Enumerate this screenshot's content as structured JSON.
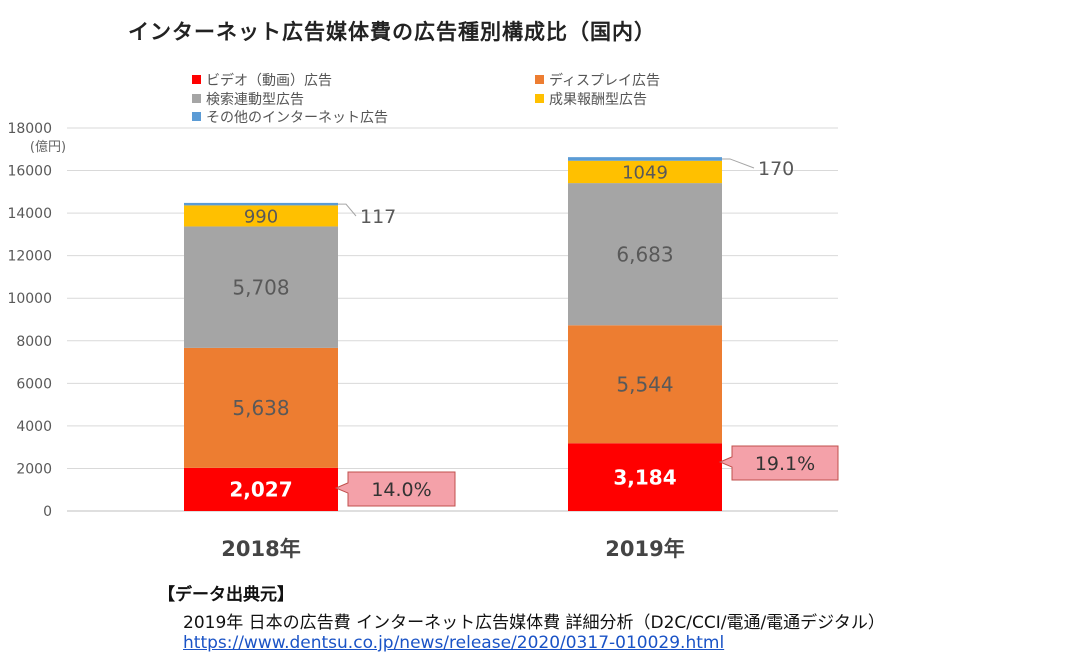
{
  "chart_data": {
    "type": "bar",
    "stacked": true,
    "title": "インターネット広告媒体費の広告種別構成比（国内）",
    "ylabel": "(億円)",
    "ylim": [
      0,
      18000
    ],
    "yticks": [
      0,
      2000,
      4000,
      6000,
      8000,
      10000,
      12000,
      14000,
      16000,
      18000
    ],
    "grid": true,
    "legend_position": "top",
    "categories": [
      "2018年",
      "2019年"
    ],
    "series": [
      {
        "name": "ビデオ（動画）広告",
        "values": [
          2027,
          3184
        ],
        "labels": [
          "2,027",
          "3,184"
        ],
        "color": "#ff0000"
      },
      {
        "name": "ディスプレイ広告",
        "values": [
          5638,
          5544
        ],
        "labels": [
          "5,638",
          "5,544"
        ],
        "color": "#ed7d31"
      },
      {
        "name": "検索連動型広告",
        "values": [
          5708,
          6683
        ],
        "labels": [
          "5,708",
          "6,683"
        ],
        "color": "#a5a5a5"
      },
      {
        "name": "成果報酬型広告",
        "values": [
          990,
          1049
        ],
        "labels": [
          "990",
          "1049"
        ],
        "color": "#ffc000"
      },
      {
        "name": "その他のインターネット広告",
        "values": [
          117,
          170
        ],
        "labels": [
          "117",
          "170"
        ],
        "color": "#5b9bd5"
      }
    ],
    "callouts": [
      "14.0%",
      "19.1%"
    ]
  },
  "source": {
    "heading": "【データ出典元】",
    "text": "2019年 日本の広告費 インターネット広告媒体費 詳細分析（D2C/CCI/電通/電通デジタル）",
    "link": "https://www.dentsu.co.jp/news/release/2020/0317-010029.html"
  }
}
